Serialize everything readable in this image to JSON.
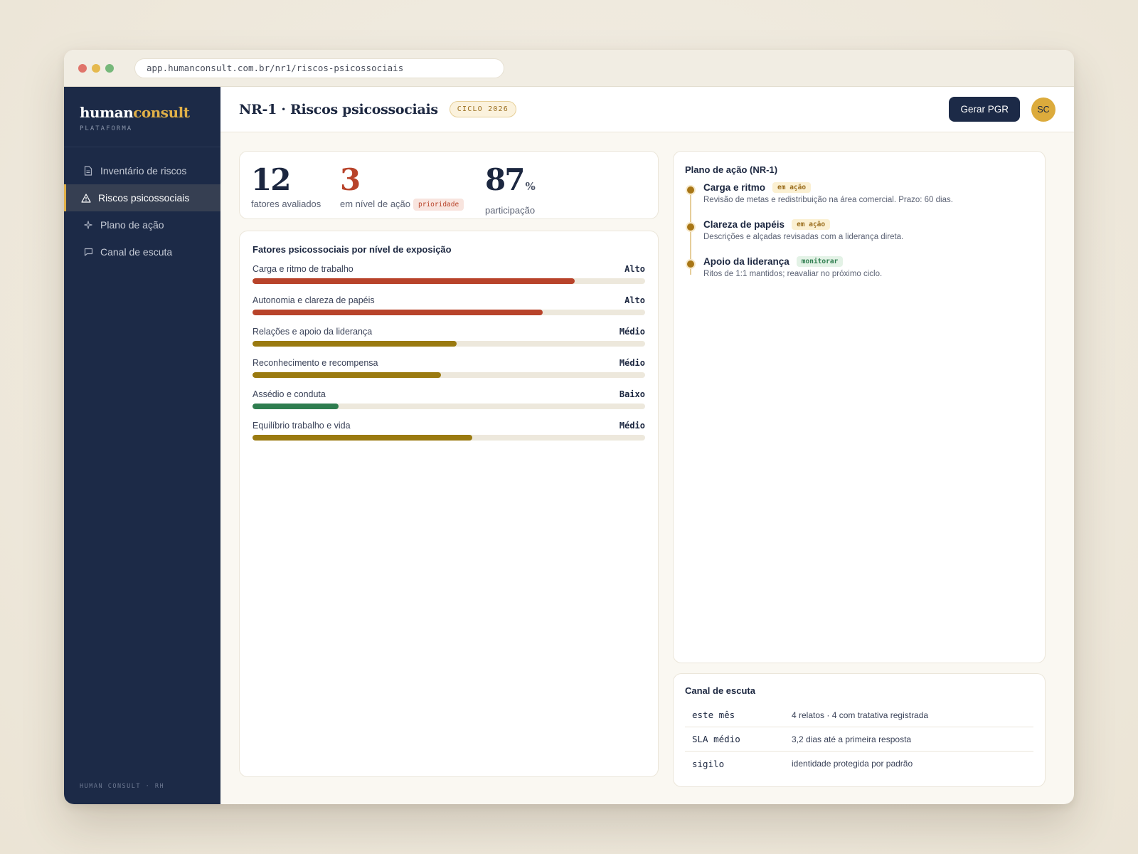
{
  "browser": {
    "url": "app.humanconsult.com.br/nr1/riscos-psicossociais"
  },
  "brand": {
    "name_main": "human",
    "name_accent": "consult",
    "subtitle": "PLATAFORMA"
  },
  "sidebar": {
    "items": [
      {
        "label": "Inventário de riscos",
        "icon": "document-icon",
        "active": false
      },
      {
        "label": "Riscos psicossociais",
        "icon": "warning-icon",
        "active": true
      },
      {
        "label": "Plano de ação",
        "icon": "sparkle-icon",
        "active": false
      },
      {
        "label": "Canal de escuta",
        "icon": "chat-icon",
        "active": false
      }
    ],
    "footer": "HUMAN CONSULT · RH"
  },
  "header": {
    "title": "NR-1 · Riscos psicossociais",
    "badge": "CICLO 2026",
    "button": "Gerar PGR",
    "avatar": "SC"
  },
  "kpis": [
    {
      "value": "12",
      "unit": "",
      "label": "fatores avaliados",
      "badge": ""
    },
    {
      "value": "3",
      "unit": "",
      "label": "em nível de ação",
      "badge": "prioridade"
    },
    {
      "value": "87",
      "unit": "%",
      "label": "participação",
      "badge": ""
    }
  ],
  "factors": {
    "title": "Fatores psicossociais por nível de exposição",
    "items": [
      {
        "name": "Carga e ritmo de trabalho",
        "level": "Alto",
        "pct": 82,
        "color": "#b8432a"
      },
      {
        "name": "Autonomia e clareza de papéis",
        "level": "Alto",
        "pct": 74,
        "color": "#b8432a"
      },
      {
        "name": "Relações e apoio da liderança",
        "level": "Médio",
        "pct": 52,
        "color": "#9a7a10"
      },
      {
        "name": "Reconhecimento e recompensa",
        "level": "Médio",
        "pct": 48,
        "color": "#9a7a10"
      },
      {
        "name": "Assédio e conduta",
        "level": "Baixo",
        "pct": 22,
        "color": "#2e7d4f"
      },
      {
        "name": "Equilíbrio trabalho e vida",
        "level": "Médio",
        "pct": 56,
        "color": "#9a7a10"
      }
    ]
  },
  "plan": {
    "title": "Plano de ação (NR-1)",
    "steps": [
      {
        "title": "Carga e ritmo",
        "tag": "em ação",
        "tag_type": "action",
        "desc": "Revisão de metas e redistribuição na área comercial. Prazo: 60 dias."
      },
      {
        "title": "Clareza de papéis",
        "tag": "em ação",
        "tag_type": "action",
        "desc": "Descrições e alçadas revisadas com a liderança direta."
      },
      {
        "title": "Apoio da liderança",
        "tag": "monitorar",
        "tag_type": "monitor",
        "desc": "Ritos de 1:1 mantidos; reavaliar no próximo ciclo."
      }
    ]
  },
  "listening": {
    "title": "Canal de escuta",
    "rows": [
      {
        "key": "este mês",
        "value": "4 relatos · 4 com tratativa registrada"
      },
      {
        "key": "SLA médio",
        "value": "3,2 dias até a primeira resposta"
      },
      {
        "key": "sigilo",
        "value": "identidade protegida por padrão"
      }
    ]
  }
}
